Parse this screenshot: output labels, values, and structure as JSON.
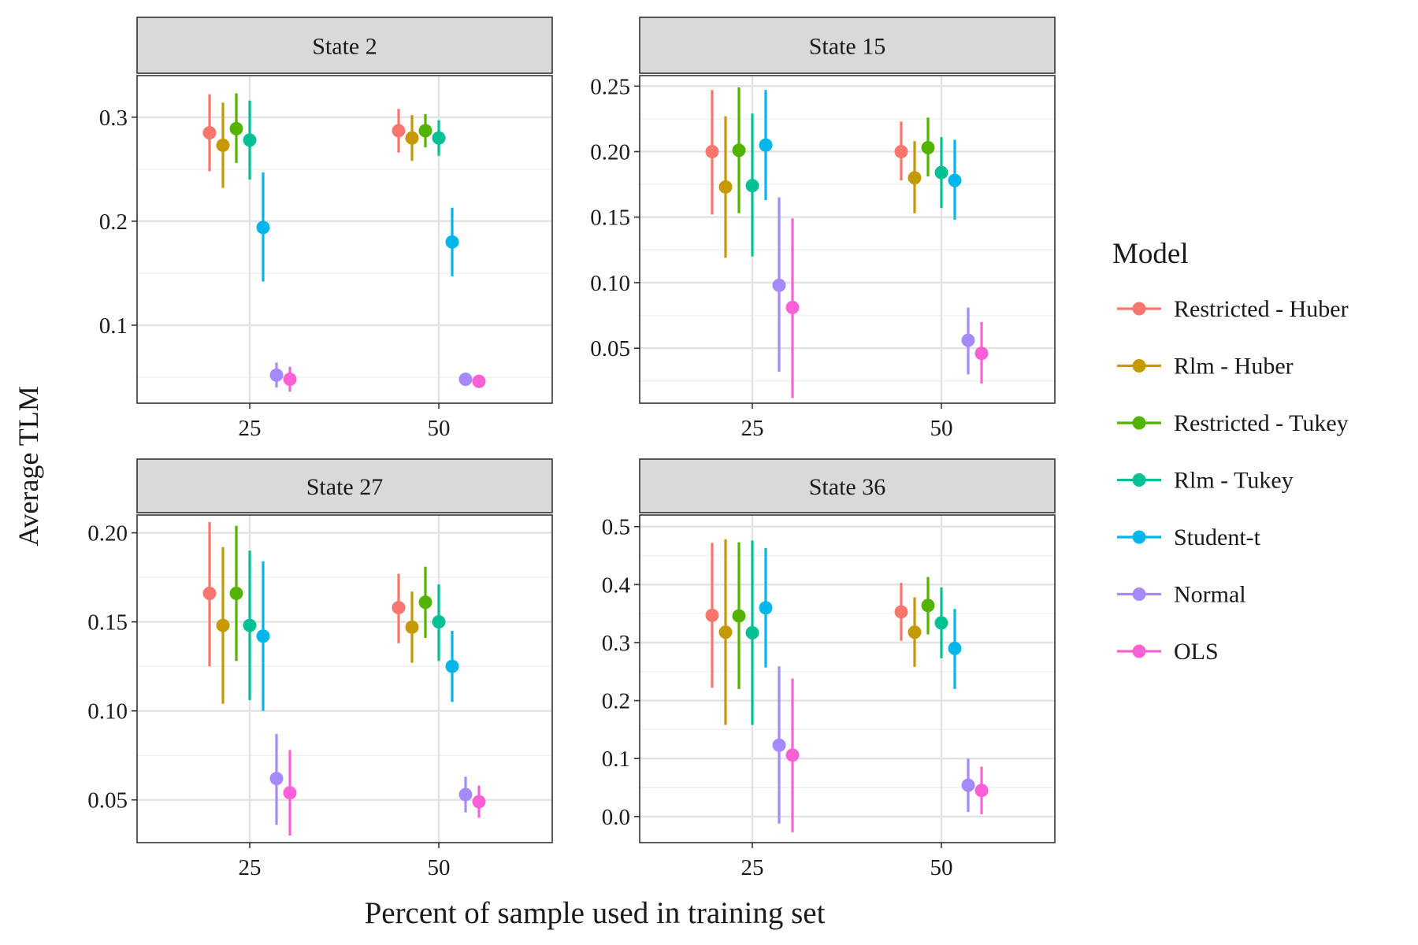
{
  "chart_data": {
    "type": "scatter",
    "subtype": "pointrange-facets",
    "xlabel": "Percent of sample used in training set",
    "ylabel": "Average TLM",
    "legend": {
      "title": "Model",
      "position": "right",
      "entries": [
        "Restricted - Huber",
        "Rlm - Huber",
        "Restricted - Tukey",
        "Rlm - Tukey",
        "Student-t",
        "Normal",
        "OLS"
      ]
    },
    "colors": {
      "Restricted - Huber": "#F8766D",
      "Rlm - Huber": "#C49A00",
      "Restricted - Tukey": "#53B400",
      "Rlm - Tukey": "#00C094",
      "Student-t": "#00B6EB",
      "Normal": "#A58AFF",
      "OLS": "#FB61D7"
    },
    "x_categories": [
      "25",
      "50"
    ],
    "grid": true,
    "panels": [
      {
        "title": "State 2",
        "ylim": [
          0.025,
          0.34
        ],
        "yticks": [
          0.1,
          0.2,
          0.3
        ],
        "ytick_labels": [
          "0.1",
          "0.2",
          "0.3"
        ],
        "series": [
          {
            "name": "Restricted - Huber",
            "y": [
              0.285,
              0.287
            ],
            "lower": [
              0.248,
              0.266
            ],
            "upper": [
              0.322,
              0.308
            ]
          },
          {
            "name": "Rlm - Huber",
            "y": [
              0.273,
              0.28
            ],
            "lower": [
              0.232,
              0.258
            ],
            "upper": [
              0.314,
              0.302
            ]
          },
          {
            "name": "Restricted - Tukey",
            "y": [
              0.289,
              0.287
            ],
            "lower": [
              0.256,
              0.271
            ],
            "upper": [
              0.323,
              0.303
            ]
          },
          {
            "name": "Rlm - Tukey",
            "y": [
              0.278,
              0.28
            ],
            "lower": [
              0.24,
              0.263
            ],
            "upper": [
              0.316,
              0.297
            ]
          },
          {
            "name": "Student-t",
            "y": [
              0.194,
              0.18
            ],
            "lower": [
              0.142,
              0.147
            ],
            "upper": [
              0.247,
              0.213
            ]
          },
          {
            "name": "Normal",
            "y": [
              0.052,
              0.048
            ],
            "lower": [
              0.04,
              0.044
            ],
            "upper": [
              0.064,
              0.052
            ]
          },
          {
            "name": "OLS",
            "y": [
              0.048,
              0.046
            ],
            "lower": [
              0.036,
              0.042
            ],
            "upper": [
              0.06,
              0.05
            ]
          }
        ]
      },
      {
        "title": "State 15",
        "ylim": [
          0.008,
          0.258
        ],
        "yticks": [
          0.05,
          0.1,
          0.15,
          0.2,
          0.25
        ],
        "ytick_labels": [
          "0.05",
          "0.10",
          "0.15",
          "0.20",
          "0.25"
        ],
        "series": [
          {
            "name": "Restricted - Huber",
            "y": [
              0.2,
              0.2
            ],
            "lower": [
              0.152,
              0.178
            ],
            "upper": [
              0.247,
              0.223
            ]
          },
          {
            "name": "Rlm - Huber",
            "y": [
              0.173,
              0.18
            ],
            "lower": [
              0.119,
              0.153
            ],
            "upper": [
              0.227,
              0.208
            ]
          },
          {
            "name": "Restricted - Tukey",
            "y": [
              0.201,
              0.203
            ],
            "lower": [
              0.153,
              0.181
            ],
            "upper": [
              0.249,
              0.226
            ]
          },
          {
            "name": "Rlm - Tukey",
            "y": [
              0.174,
              0.184
            ],
            "lower": [
              0.12,
              0.157
            ],
            "upper": [
              0.229,
              0.211
            ]
          },
          {
            "name": "Student-t",
            "y": [
              0.205,
              0.178
            ],
            "lower": [
              0.163,
              0.148
            ],
            "upper": [
              0.247,
              0.209
            ]
          },
          {
            "name": "Normal",
            "y": [
              0.098,
              0.056
            ],
            "lower": [
              0.032,
              0.03
            ],
            "upper": [
              0.165,
              0.081
            ]
          },
          {
            "name": "OLS",
            "y": [
              0.081,
              0.046
            ],
            "lower": [
              0.012,
              0.023
            ],
            "upper": [
              0.149,
              0.07
            ]
          }
        ]
      },
      {
        "title": "State 27",
        "ylim": [
          0.026,
          0.21
        ],
        "yticks": [
          0.05,
          0.1,
          0.15,
          0.2
        ],
        "ytick_labels": [
          "0.05",
          "0.10",
          "0.15",
          "0.20"
        ],
        "series": [
          {
            "name": "Restricted - Huber",
            "y": [
              0.166,
              0.158
            ],
            "lower": [
              0.125,
              0.138
            ],
            "upper": [
              0.206,
              0.177
            ]
          },
          {
            "name": "Rlm - Huber",
            "y": [
              0.148,
              0.147
            ],
            "lower": [
              0.104,
              0.127
            ],
            "upper": [
              0.192,
              0.167
            ]
          },
          {
            "name": "Restricted - Tukey",
            "y": [
              0.166,
              0.161
            ],
            "lower": [
              0.128,
              0.141
            ],
            "upper": [
              0.204,
              0.181
            ]
          },
          {
            "name": "Rlm - Tukey",
            "y": [
              0.148,
              0.15
            ],
            "lower": [
              0.106,
              0.128
            ],
            "upper": [
              0.19,
              0.171
            ]
          },
          {
            "name": "Student-t",
            "y": [
              0.142,
              0.125
            ],
            "lower": [
              0.1,
              0.105
            ],
            "upper": [
              0.184,
              0.145
            ]
          },
          {
            "name": "Normal",
            "y": [
              0.062,
              0.053
            ],
            "lower": [
              0.036,
              0.043
            ],
            "upper": [
              0.087,
              0.063
            ]
          },
          {
            "name": "OLS",
            "y": [
              0.054,
              0.049
            ],
            "lower": [
              0.03,
              0.04
            ],
            "upper": [
              0.078,
              0.058
            ]
          }
        ]
      },
      {
        "title": "State 36",
        "ylim": [
          -0.045,
          0.52
        ],
        "yticks": [
          0.0,
          0.1,
          0.2,
          0.3,
          0.4,
          0.5
        ],
        "ytick_labels": [
          "0.0",
          "0.1",
          "0.2",
          "0.3",
          "0.4",
          "0.5"
        ],
        "series": [
          {
            "name": "Restricted - Huber",
            "y": [
              0.347,
              0.353
            ],
            "lower": [
              0.222,
              0.303
            ],
            "upper": [
              0.472,
              0.403
            ]
          },
          {
            "name": "Rlm - Huber",
            "y": [
              0.318,
              0.318
            ],
            "lower": [
              0.158,
              0.258
            ],
            "upper": [
              0.478,
              0.378
            ]
          },
          {
            "name": "Restricted - Tukey",
            "y": [
              0.346,
              0.364
            ],
            "lower": [
              0.22,
              0.314
            ],
            "upper": [
              0.473,
              0.413
            ]
          },
          {
            "name": "Rlm - Tukey",
            "y": [
              0.317,
              0.334
            ],
            "lower": [
              0.158,
              0.273
            ],
            "upper": [
              0.476,
              0.395
            ]
          },
          {
            "name": "Student-t",
            "y": [
              0.36,
              0.29
            ],
            "lower": [
              0.257,
              0.22
            ],
            "upper": [
              0.463,
              0.358
            ]
          },
          {
            "name": "Normal",
            "y": [
              0.123,
              0.054
            ],
            "lower": [
              -0.012,
              0.008
            ],
            "upper": [
              0.259,
              0.1
            ]
          },
          {
            "name": "OLS",
            "y": [
              0.106,
              0.045
            ],
            "lower": [
              -0.027,
              0.004
            ],
            "upper": [
              0.238,
              0.086
            ]
          }
        ]
      }
    ]
  }
}
